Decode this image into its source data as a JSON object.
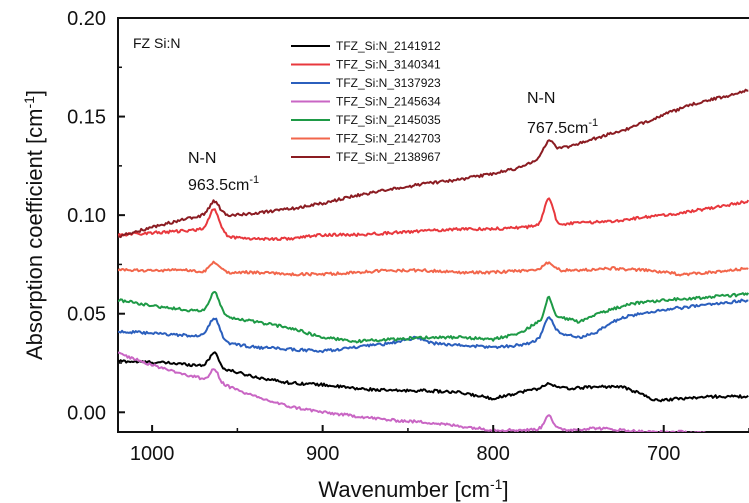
{
  "chart_data": {
    "type": "line",
    "title": "",
    "sample_label": "FZ Si:N",
    "xlabel": "Wavenumber [cm",
    "xlabel_sup": "-1",
    "xlabel_end": "]",
    "ylabel": "Absorption coefficient [cm",
    "ylabel_sup": "-1",
    "ylabel_end": "]",
    "xlim": [
      1020,
      650
    ],
    "ylim": [
      -0.01,
      0.2
    ],
    "xticks": [
      1000,
      900,
      800,
      700
    ],
    "yticks": [
      0.0,
      0.05,
      0.1,
      0.15,
      0.2
    ],
    "ytick_labels": [
      "0.00",
      "0.05",
      "0.10",
      "0.15",
      "0.20"
    ],
    "legend_position": "top-center",
    "annotations": [
      {
        "line1": "N-N",
        "line2": "963.5cm",
        "sup": "-1",
        "x": 963.5,
        "y": 0.125
      },
      {
        "line1": "N-N",
        "line2": "767.5cm",
        "sup": "-1",
        "x": 767.5,
        "y": 0.16
      }
    ],
    "series": [
      {
        "name": "TFZ_Si:N_2141912",
        "color": "#000000",
        "points": [
          [
            1020,
            0.026
          ],
          [
            990,
            0.025
          ],
          [
            975,
            0.024
          ],
          [
            970,
            0.024
          ],
          [
            963.5,
            0.027
          ],
          [
            958,
            0.022
          ],
          [
            940,
            0.018
          ],
          [
            920,
            0.015
          ],
          [
            900,
            0.014
          ],
          [
            880,
            0.012
          ],
          [
            860,
            0.011
          ],
          [
            840,
            0.011
          ],
          [
            820,
            0.01
          ],
          [
            800,
            0.007
          ],
          [
            790,
            0.009
          ],
          [
            780,
            0.011
          ],
          [
            767.5,
            0.013
          ],
          [
            755,
            0.012
          ],
          [
            740,
            0.013
          ],
          [
            725,
            0.013
          ],
          [
            715,
            0.01
          ],
          [
            705,
            0.006
          ],
          [
            690,
            0.007
          ],
          [
            670,
            0.008
          ],
          [
            650,
            0.008
          ]
        ],
        "peaks": [
          [
            963.5,
            0.004,
            3
          ],
          [
            767.5,
            0.002,
            3
          ]
        ]
      },
      {
        "name": "TFZ_Si:N_3140341",
        "color": "#e8383d",
        "points": [
          [
            1020,
            0.09
          ],
          [
            1000,
            0.091
          ],
          [
            980,
            0.092
          ],
          [
            970,
            0.093
          ],
          [
            963.5,
            0.093
          ],
          [
            955,
            0.089
          ],
          [
            940,
            0.088
          ],
          [
            920,
            0.088
          ],
          [
            900,
            0.09
          ],
          [
            880,
            0.09
          ],
          [
            860,
            0.091
          ],
          [
            840,
            0.092
          ],
          [
            820,
            0.093
          ],
          [
            800,
            0.093
          ],
          [
            780,
            0.094
          ],
          [
            767.5,
            0.095
          ],
          [
            750,
            0.096
          ],
          [
            730,
            0.097
          ],
          [
            710,
            0.099
          ],
          [
            690,
            0.101
          ],
          [
            670,
            0.104
          ],
          [
            650,
            0.107
          ]
        ],
        "peaks": [
          [
            963.5,
            0.01,
            4
          ],
          [
            767.5,
            0.014,
            3.5
          ]
        ]
      },
      {
        "name": "TFZ_Si:N_3137923",
        "color": "#2b5fbd",
        "points": [
          [
            1020,
            0.041
          ],
          [
            1000,
            0.04
          ],
          [
            980,
            0.039
          ],
          [
            970,
            0.039
          ],
          [
            963.5,
            0.039
          ],
          [
            955,
            0.035
          ],
          [
            940,
            0.033
          ],
          [
            920,
            0.032
          ],
          [
            900,
            0.031
          ],
          [
            880,
            0.033
          ],
          [
            860,
            0.035
          ],
          [
            845,
            0.038
          ],
          [
            835,
            0.035
          ],
          [
            820,
            0.034
          ],
          [
            800,
            0.033
          ],
          [
            785,
            0.034
          ],
          [
            775,
            0.036
          ],
          [
            767.5,
            0.038
          ],
          [
            760,
            0.04
          ],
          [
            750,
            0.038
          ],
          [
            740,
            0.04
          ],
          [
            730,
            0.046
          ],
          [
            720,
            0.049
          ],
          [
            700,
            0.052
          ],
          [
            680,
            0.054
          ],
          [
            650,
            0.057
          ]
        ],
        "peaks": [
          [
            963.5,
            0.009,
            4
          ],
          [
            767.5,
            0.01,
            4
          ]
        ]
      },
      {
        "name": "TFZ_Si:N_2145634",
        "color": "#c966c4",
        "points": [
          [
            1020,
            0.03
          ],
          [
            1000,
            0.024
          ],
          [
            980,
            0.019
          ],
          [
            970,
            0.017
          ],
          [
            963.5,
            0.017
          ],
          [
            955,
            0.013
          ],
          [
            940,
            0.008
          ],
          [
            920,
            0.003
          ],
          [
            900,
            0.0
          ],
          [
            880,
            -0.002
          ],
          [
            860,
            -0.004
          ],
          [
            840,
            -0.005
          ],
          [
            820,
            -0.007
          ],
          [
            800,
            -0.009
          ],
          [
            780,
            -0.009
          ],
          [
            767.5,
            -0.008
          ],
          [
            755,
            -0.009
          ],
          [
            740,
            -0.008
          ],
          [
            725,
            -0.009
          ],
          [
            710,
            -0.01
          ],
          [
            690,
            -0.01
          ],
          [
            670,
            -0.011
          ],
          [
            650,
            -0.012
          ]
        ],
        "peaks": [
          [
            963.5,
            0.005,
            3
          ],
          [
            767.5,
            0.007,
            3
          ]
        ]
      },
      {
        "name": "TFZ_Si:N_2145035",
        "color": "#1e9a46",
        "points": [
          [
            1020,
            0.057
          ],
          [
            1000,
            0.054
          ],
          [
            980,
            0.052
          ],
          [
            970,
            0.051
          ],
          [
            963.5,
            0.052
          ],
          [
            955,
            0.048
          ],
          [
            940,
            0.046
          ],
          [
            920,
            0.043
          ],
          [
            900,
            0.038
          ],
          [
            880,
            0.036
          ],
          [
            860,
            0.037
          ],
          [
            840,
            0.038
          ],
          [
            820,
            0.038
          ],
          [
            800,
            0.037
          ],
          [
            785,
            0.04
          ],
          [
            775,
            0.045
          ],
          [
            767.5,
            0.048
          ],
          [
            760,
            0.048
          ],
          [
            750,
            0.046
          ],
          [
            735,
            0.051
          ],
          [
            720,
            0.055
          ],
          [
            700,
            0.057
          ],
          [
            680,
            0.058
          ],
          [
            650,
            0.06
          ]
        ],
        "peaks": [
          [
            963.5,
            0.009,
            4
          ],
          [
            767.5,
            0.01,
            3
          ]
        ]
      },
      {
        "name": "TFZ_Si:N_2142703",
        "color": "#f2664b",
        "points": [
          [
            1020,
            0.072
          ],
          [
            1000,
            0.072
          ],
          [
            980,
            0.072
          ],
          [
            970,
            0.071
          ],
          [
            963.5,
            0.072
          ],
          [
            955,
            0.071
          ],
          [
            940,
            0.071
          ],
          [
            920,
            0.07
          ],
          [
            900,
            0.07
          ],
          [
            880,
            0.071
          ],
          [
            860,
            0.072
          ],
          [
            840,
            0.072
          ],
          [
            820,
            0.071
          ],
          [
            800,
            0.071
          ],
          [
            780,
            0.072
          ],
          [
            767.5,
            0.072
          ],
          [
            750,
            0.072
          ],
          [
            730,
            0.073
          ],
          [
            710,
            0.072
          ],
          [
            690,
            0.07
          ],
          [
            670,
            0.071
          ],
          [
            650,
            0.073
          ]
        ],
        "peaks": [
          [
            963.5,
            0.004,
            4
          ],
          [
            767.5,
            0.004,
            4
          ]
        ]
      },
      {
        "name": "TFZ_Si:N_2138967",
        "color": "#8b1c22",
        "points": [
          [
            1020,
            0.089
          ],
          [
            1000,
            0.094
          ],
          [
            980,
            0.098
          ],
          [
            970,
            0.1
          ],
          [
            963.5,
            0.101
          ],
          [
            955,
            0.1
          ],
          [
            940,
            0.101
          ],
          [
            920,
            0.103
          ],
          [
            900,
            0.106
          ],
          [
            880,
            0.11
          ],
          [
            860,
            0.113
          ],
          [
            840,
            0.116
          ],
          [
            820,
            0.118
          ],
          [
            800,
            0.121
          ],
          [
            785,
            0.124
          ],
          [
            775,
            0.128
          ],
          [
            767.5,
            0.133
          ],
          [
            755,
            0.135
          ],
          [
            740,
            0.139
          ],
          [
            720,
            0.144
          ],
          [
            700,
            0.151
          ],
          [
            680,
            0.157
          ],
          [
            660,
            0.161
          ],
          [
            650,
            0.164
          ]
        ],
        "peaks": [
          [
            963.5,
            0.006,
            4
          ],
          [
            767.5,
            0.005,
            3.5
          ]
        ]
      }
    ]
  }
}
